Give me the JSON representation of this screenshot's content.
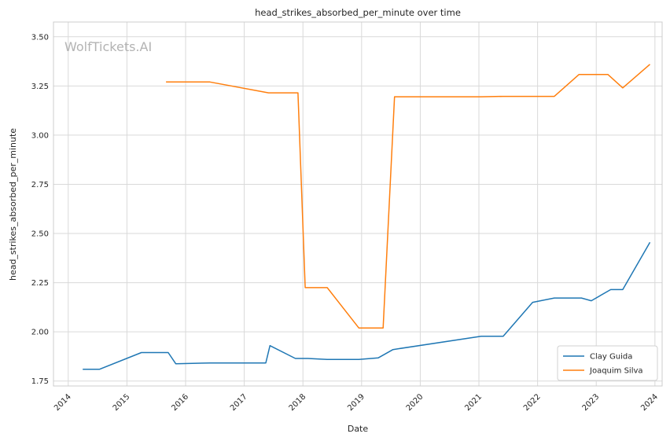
{
  "chart_data": {
    "type": "line",
    "title": "head_strikes_absorbed_per_minute over time",
    "xlabel": "Date",
    "ylabel": "head_strikes_absorbed_per_minute",
    "watermark": "WolfTickets.AI",
    "x_ticks": [
      "2014",
      "2015",
      "2016",
      "2017",
      "2018",
      "2019",
      "2020",
      "2021",
      "2022",
      "2023",
      "2024"
    ],
    "y_ticks": [
      "1.75",
      "2.00",
      "2.25",
      "2.50",
      "2.75",
      "3.00",
      "3.25",
      "3.50"
    ],
    "xlim": [
      "2013-10-01",
      "2024-02-15"
    ],
    "ylim": [
      1.725,
      3.575
    ],
    "grid": true,
    "legend_position": "lower-right",
    "series": [
      {
        "name": "Clay Guida",
        "color": "#1f77b4",
        "points": [
          [
            "2014-04-01",
            1.81
          ],
          [
            "2014-07-15",
            1.81
          ],
          [
            "2015-04-01",
            1.895
          ],
          [
            "2015-09-15",
            1.895
          ],
          [
            "2015-11-01",
            1.838
          ],
          [
            "2016-06-01",
            1.842
          ],
          [
            "2017-05-15",
            1.842
          ],
          [
            "2017-06-10",
            1.93
          ],
          [
            "2017-11-15",
            1.865
          ],
          [
            "2018-02-01",
            1.865
          ],
          [
            "2018-06-01",
            1.86
          ],
          [
            "2018-12-15",
            1.86
          ],
          [
            "2019-04-15",
            1.868
          ],
          [
            "2019-07-15",
            1.91
          ],
          [
            "2021-01-15",
            1.978
          ],
          [
            "2021-06-01",
            1.978
          ],
          [
            "2021-12-01",
            2.15
          ],
          [
            "2022-04-15",
            2.172
          ],
          [
            "2022-10-01",
            2.172
          ],
          [
            "2022-12-01",
            2.158
          ],
          [
            "2023-04-01",
            2.215
          ],
          [
            "2023-06-15",
            2.215
          ],
          [
            "2023-12-01",
            2.455
          ]
        ]
      },
      {
        "name": "Joaquim Silva",
        "color": "#ff7f0e",
        "points": [
          [
            "2015-09-01",
            3.27
          ],
          [
            "2016-06-01",
            3.27
          ],
          [
            "2017-06-01",
            3.215
          ],
          [
            "2017-12-01",
            3.215
          ],
          [
            "2018-01-15",
            2.225
          ],
          [
            "2018-06-01",
            2.225
          ],
          [
            "2018-12-15",
            2.02
          ],
          [
            "2019-05-15",
            2.02
          ],
          [
            "2019-07-25",
            3.195
          ],
          [
            "2021-01-15",
            3.195
          ],
          [
            "2021-06-01",
            3.197
          ],
          [
            "2022-04-15",
            3.197
          ],
          [
            "2022-09-15",
            3.308
          ],
          [
            "2023-03-15",
            3.308
          ],
          [
            "2023-06-15",
            3.24
          ],
          [
            "2023-12-01",
            3.36
          ]
        ]
      }
    ]
  }
}
